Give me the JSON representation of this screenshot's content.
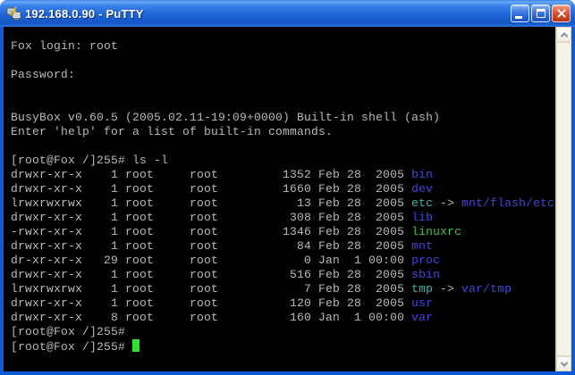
{
  "window": {
    "title": "192.168.0.90 - PuTTY",
    "icon": "putty-terminals-icon",
    "controls": {
      "minimize": "minimize-window",
      "maximize": "maximize-window",
      "close": "close-window"
    }
  },
  "colors": {
    "titlebar_top": "#3a80e8",
    "titlebar_mid": "#1e63d6",
    "border": "#0f58d8",
    "terminal_bg": "#000000",
    "text": "#b9b9b9",
    "directory": "#4545d8",
    "symlink": "#3cb4aa",
    "executable": "#4cbe4c",
    "cursor": "#32e032",
    "close_red": "#d6492a",
    "scrollbar_bg": "#f1efe2"
  },
  "terminal": {
    "hostname": "Fox",
    "prompt": "[root@Fox /]255#",
    "command": "ls -l",
    "lines": [
      {
        "segs": [
          {
            "t": "Fox login: root",
            "c": "fg"
          }
        ]
      },
      {
        "segs": []
      },
      {
        "segs": [
          {
            "t": "Password:",
            "c": "fg"
          }
        ]
      },
      {
        "segs": []
      },
      {
        "segs": []
      },
      {
        "segs": [
          {
            "t": "BusyBox v0.60.5 (2005.02.11-19:09+0000) Built-in shell (ash)",
            "c": "fg"
          }
        ]
      },
      {
        "segs": [
          {
            "t": "Enter 'help' for a list of built-in commands.",
            "c": "fg"
          }
        ]
      },
      {
        "segs": []
      },
      {
        "segs": [
          {
            "t": "[root@Fox /]255# ls -l",
            "c": "fg"
          }
        ]
      },
      {
        "segs": [
          {
            "t": "drwxr-xr-x    1 root     root         1352 Feb 28  2005 ",
            "c": "fg"
          },
          {
            "t": "bin",
            "c": "dir"
          }
        ]
      },
      {
        "segs": [
          {
            "t": "drwxr-xr-x    1 root     root         1660 Feb 28  2005 ",
            "c": "fg"
          },
          {
            "t": "dev",
            "c": "dir"
          }
        ]
      },
      {
        "segs": [
          {
            "t": "lrwxrwxrwx    1 root     root           13 Feb 28  2005 ",
            "c": "fg"
          },
          {
            "t": "etc",
            "c": "lnk"
          },
          {
            "t": " -> ",
            "c": "fg"
          },
          {
            "t": "mnt/flash/etc",
            "c": "dir"
          }
        ]
      },
      {
        "segs": [
          {
            "t": "drwxr-xr-x    1 root     root          308 Feb 28  2005 ",
            "c": "fg"
          },
          {
            "t": "lib",
            "c": "dir"
          }
        ]
      },
      {
        "segs": [
          {
            "t": "-rwxr-xr-x    1 root     root         1346 Feb 28  2005 ",
            "c": "fg"
          },
          {
            "t": "linuxrc",
            "c": "exe"
          }
        ]
      },
      {
        "segs": [
          {
            "t": "drwxr-xr-x    1 root     root           84 Feb 28  2005 ",
            "c": "fg"
          },
          {
            "t": "mnt",
            "c": "dir"
          }
        ]
      },
      {
        "segs": [
          {
            "t": "dr-xr-xr-x   29 root     root            0 Jan  1 00:00 ",
            "c": "fg"
          },
          {
            "t": "proc",
            "c": "dir"
          }
        ]
      },
      {
        "segs": [
          {
            "t": "drwxr-xr-x    1 root     root          516 Feb 28  2005 ",
            "c": "fg"
          },
          {
            "t": "sbin",
            "c": "dir"
          }
        ]
      },
      {
        "segs": [
          {
            "t": "lrwxrwxrwx    1 root     root            7 Feb 28  2005 ",
            "c": "fg"
          },
          {
            "t": "tmp",
            "c": "lnk"
          },
          {
            "t": " -> ",
            "c": "fg"
          },
          {
            "t": "var/tmp",
            "c": "dir"
          }
        ]
      },
      {
        "segs": [
          {
            "t": "drwxr-xr-x    1 root     root          120 Feb 28  2005 ",
            "c": "fg"
          },
          {
            "t": "usr",
            "c": "dir"
          }
        ]
      },
      {
        "segs": [
          {
            "t": "drwxr-xr-x    8 root     root          160 Jan  1 00:00 ",
            "c": "fg"
          },
          {
            "t": "var",
            "c": "dir"
          }
        ]
      },
      {
        "segs": [
          {
            "t": "[root@Fox /]255#",
            "c": "fg"
          }
        ]
      },
      {
        "segs": [
          {
            "t": "[root@Fox /]255# ",
            "c": "fg"
          },
          {
            "t": "",
            "c": "cursor"
          }
        ]
      }
    ]
  },
  "scrollbar": {
    "up_icon": "chevron-up-icon",
    "down_icon": "chevron-down-icon"
  }
}
